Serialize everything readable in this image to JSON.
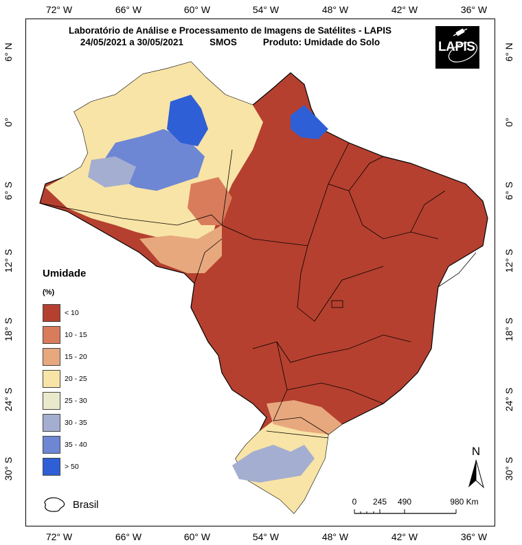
{
  "header": {
    "title": "Laboratório de Análise e Processamento de Imagens de Satélites - LAPIS",
    "period": "24/05/2021  a  30/05/2021",
    "sensor": "SMOS",
    "product": "Produto: Umidade do Solo",
    "logo_text": "LAPIS"
  },
  "axes": {
    "longitudes": [
      "72° W",
      "66° W",
      "60° W",
      "54° W",
      "48° W",
      "42° W",
      "36° W"
    ],
    "latitudes": [
      "6° N",
      "0°",
      "6° S",
      "12° S",
      "18° S",
      "24° S",
      "30° S"
    ]
  },
  "legend": {
    "title": "Umidade",
    "unit": "(%)",
    "items": [
      {
        "label": "< 10",
        "color": "#b5402f"
      },
      {
        "label": "10 - 15",
        "color": "#d97c5c"
      },
      {
        "label": "15 - 20",
        "color": "#e8a87e"
      },
      {
        "label": "20 - 25",
        "color": "#f8e4a6"
      },
      {
        "label": "25 - 30",
        "color": "#e9e9cc"
      },
      {
        "label": "30 - 35",
        "color": "#a4aed0"
      },
      {
        "label": "35 - 40",
        "color": "#6e87d4"
      },
      {
        "label": "> 50",
        "color": "#2e5fd6"
      }
    ],
    "boundary_label": "Brasil"
  },
  "scale": {
    "labels": [
      "0",
      "245",
      "490",
      "980 Km"
    ]
  },
  "north_label": "N",
  "colors": {
    "dry": "#b5402f",
    "boundary": "#000000"
  }
}
